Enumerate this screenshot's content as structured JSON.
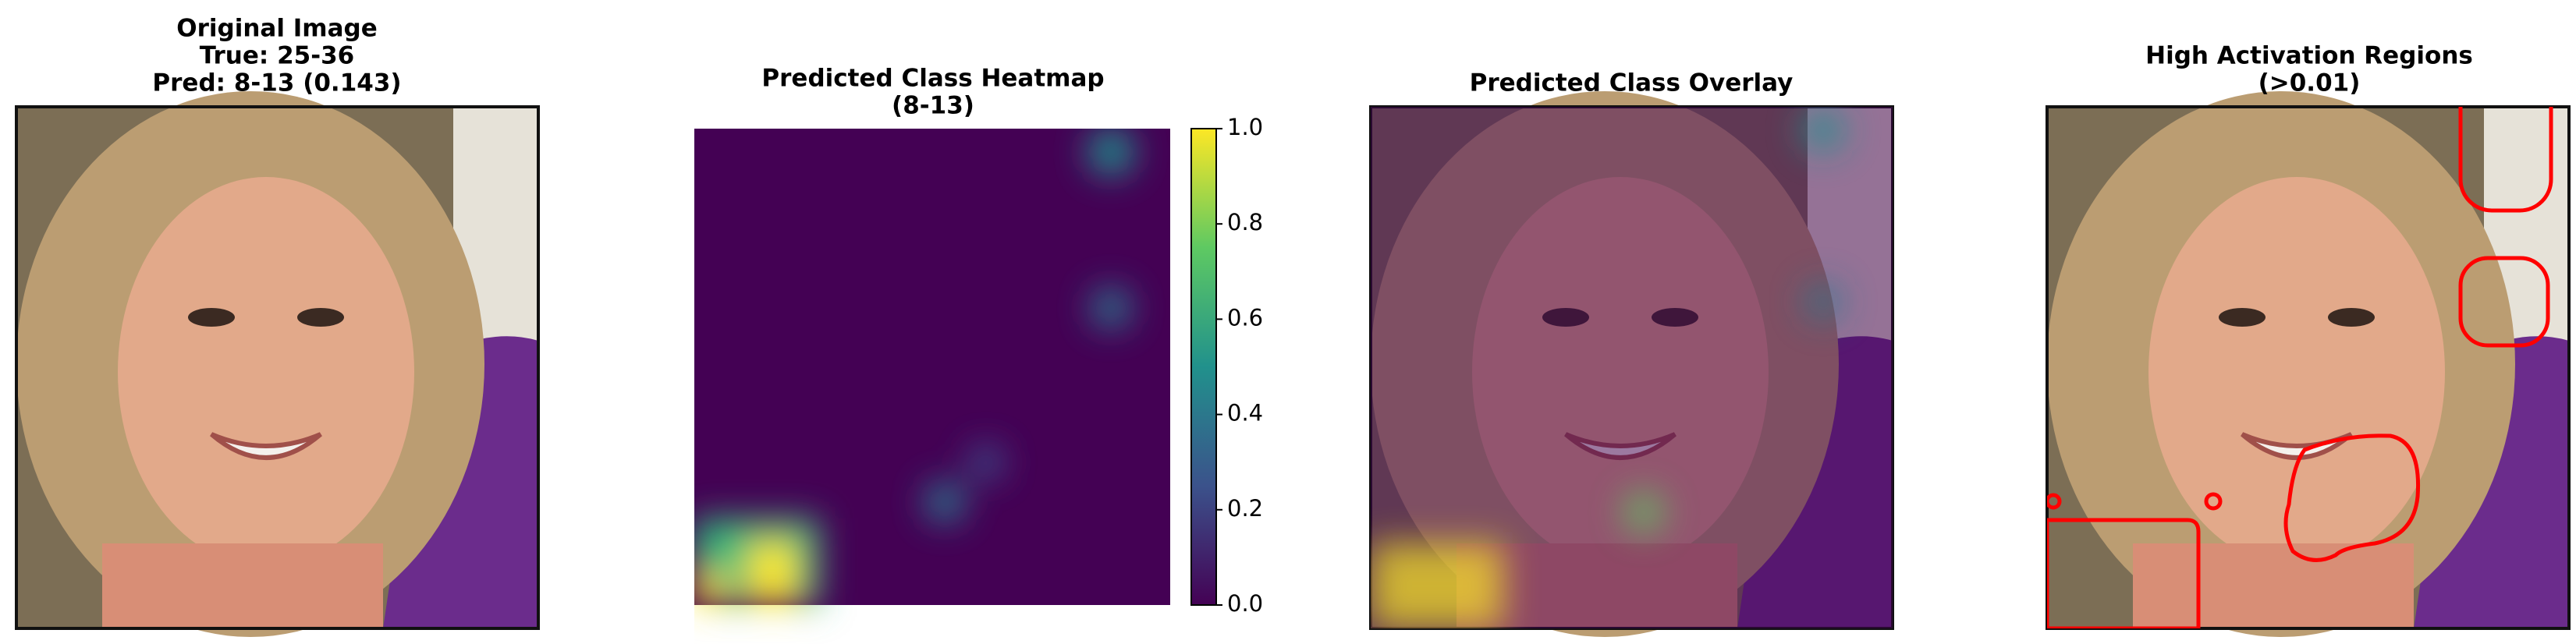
{
  "chart_data": [
    {
      "type": "image",
      "title": [
        "Original Image",
        "True: 25-36",
        "Pred: 8-13 (0.143)"
      ]
    },
    {
      "type": "heatmap",
      "title": [
        "Predicted Class Heatmap",
        "(8-13)"
      ],
      "colormap": "viridis",
      "clim": [
        0,
        1
      ],
      "cticks": [
        {
          "value": 0,
          "label": "0.0"
        },
        0.2,
        0.4,
        0.6,
        0.8,
        {
          "value": 1,
          "label": "1.0"
        }
      ]
    },
    {
      "type": "image",
      "title": [
        "Predicted Class Overlay"
      ]
    },
    {
      "type": "image",
      "title": [
        "High Activation Regions",
        "(>0.01)"
      ],
      "contour_color": "red"
    }
  ]
}
